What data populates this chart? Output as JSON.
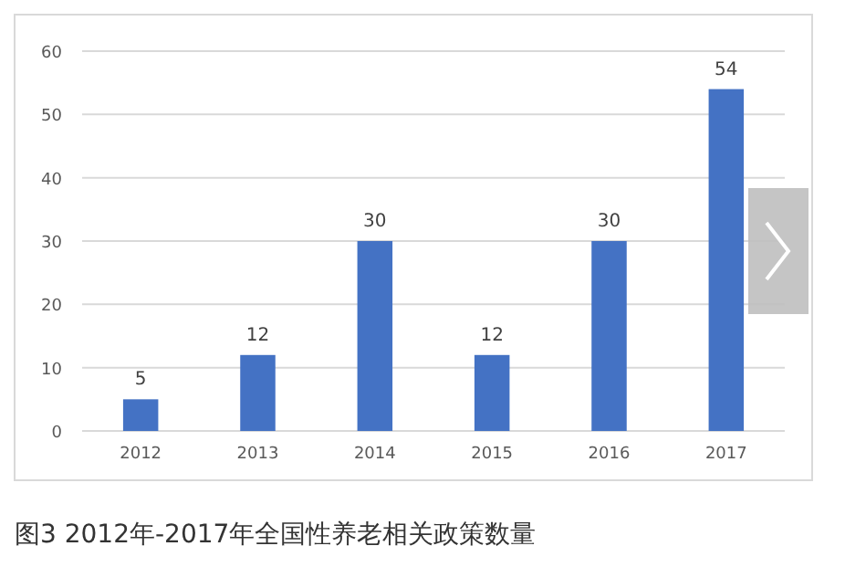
{
  "chart_data": {
    "type": "bar",
    "title": "图3 2012年-2017年全国性养老相关政策数量",
    "categories": [
      "2012",
      "2013",
      "2014",
      "2015",
      "2016",
      "2017"
    ],
    "values": [
      5,
      12,
      30,
      12,
      30,
      54
    ],
    "color": "#4472c4",
    "ylim": [
      0,
      60
    ],
    "yticks": [
      0,
      10,
      20,
      30,
      40,
      50,
      60
    ],
    "grid": "y",
    "data_labels": true
  }
}
